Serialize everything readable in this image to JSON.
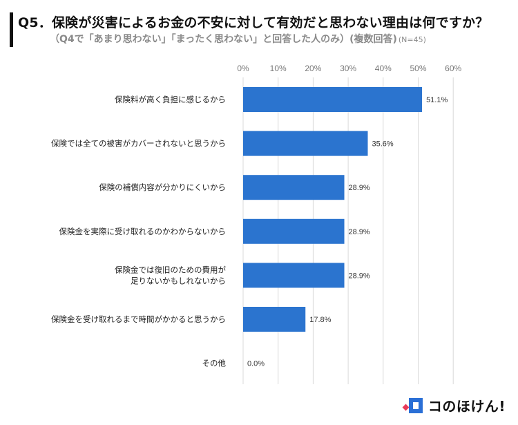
{
  "header": {
    "title": "Q5．保険が災害によるお金の不安に対して有効だと思わない理由は何ですか？",
    "subtitle": "（Q4で「あまり思わない」「まったく思わない」と回答した人のみ）(複数回答)",
    "sample_size": "(N=45)"
  },
  "brand": {
    "logo_text": "コのほけん!"
  },
  "colors": {
    "bar": "#2b74cf",
    "grid": "#d9d9d9",
    "text": "#222222"
  },
  "chart_data": {
    "type": "bar",
    "orientation": "horizontal",
    "categories": [
      "保険料が高く負担に感じるから",
      "保険では全ての被害がカバーされないと思うから",
      "保険の補償内容が分かりにくいから",
      "保険金を実際に受け取れるのかわからないから",
      "保険金では復旧のための費用が\n足りないかもしれないから",
      "保険金を受け取れるまで時間がかかると思うから",
      "その他"
    ],
    "values": [
      51.1,
      35.6,
      28.9,
      28.9,
      28.9,
      17.8,
      0.0
    ],
    "value_labels": [
      "51.1%",
      "35.6%",
      "28.9%",
      "28.9%",
      "28.9%",
      "17.8%",
      "0.0%"
    ],
    "x_ticks": [
      "0%",
      "10%",
      "20%",
      "30%",
      "40%",
      "50%",
      "60%"
    ],
    "xlim": [
      0,
      60
    ],
    "grid": true,
    "title": "",
    "xlabel": "",
    "ylabel": ""
  }
}
